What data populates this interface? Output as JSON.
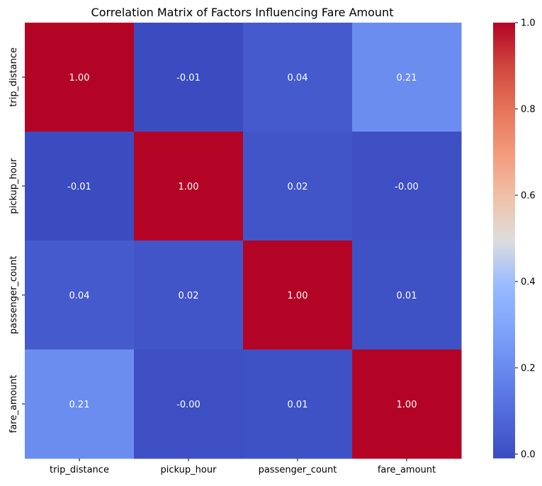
{
  "chart_data": {
    "type": "heatmap",
    "title": "Correlation Matrix of Factors Influencing Fare Amount",
    "xlabel": "",
    "ylabel": "",
    "x_categories": [
      "trip_distance",
      "pickup_hour",
      "passenger_count",
      "fare_amount"
    ],
    "y_categories": [
      "trip_distance",
      "pickup_hour",
      "passenger_count",
      "fare_amount"
    ],
    "values": [
      [
        1.0,
        -0.01,
        0.04,
        0.21
      ],
      [
        -0.01,
        1.0,
        0.02,
        -0.0
      ],
      [
        0.04,
        0.02,
        1.0,
        0.01
      ],
      [
        0.21,
        -0.0,
        0.01,
        1.0
      ]
    ],
    "value_labels": [
      [
        "1.00",
        "-0.01",
        "0.04",
        "0.21"
      ],
      [
        "-0.01",
        "1.00",
        "0.02",
        "-0.00"
      ],
      [
        "0.04",
        "0.02",
        "1.00",
        "0.01"
      ],
      [
        "0.21",
        "-0.00",
        "0.01",
        "1.00"
      ]
    ],
    "colormap": "coolwarm",
    "colorbar": {
      "range": [
        -0.01,
        1.0
      ],
      "ticks": [
        0.0,
        0.2,
        0.4,
        0.6,
        0.8,
        1.0
      ],
      "tick_labels": [
        "0.0",
        "0.2",
        "0.4",
        "0.6",
        "0.8",
        "1.0"
      ]
    },
    "colors": {
      "low": "#3b4cc0",
      "mid": "#dddddd",
      "high": "#b40426",
      "annotation_text": "#ffffff"
    }
  }
}
